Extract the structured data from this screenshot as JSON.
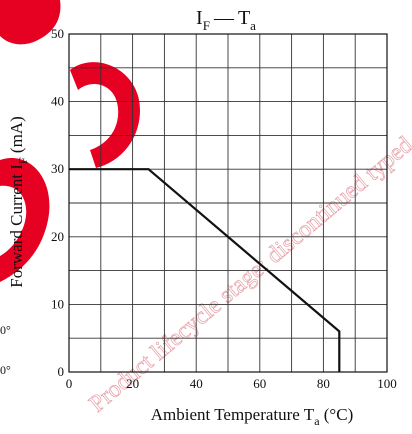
{
  "chart_data": {
    "type": "line",
    "title": "I_F — T_a",
    "title_parts": {
      "left_main": "I",
      "left_sub": "F",
      "dash": "—",
      "right_main": "T",
      "right_sub": "a"
    },
    "xlabel_parts": {
      "main": "Ambient Temperature  T",
      "sub": "a",
      "unit": " (°C)"
    },
    "ylabel_parts": {
      "main": "Forward Current  I",
      "sub": "F",
      "unit": "  (mA)"
    },
    "x_ticks": [
      0,
      20,
      40,
      60,
      80,
      100
    ],
    "y_ticks": [
      0,
      10,
      20,
      30,
      40,
      50
    ],
    "xlim": [
      0,
      100
    ],
    "ylim": [
      0,
      50
    ],
    "grid": true,
    "grid_step": {
      "x": 10,
      "y": 5
    },
    "series": [
      {
        "x": [
          0,
          25,
          85,
          85
        ],
        "y": [
          30,
          30,
          6,
          0
        ]
      }
    ],
    "color": "#111111"
  },
  "watermark": {
    "color": "#e60022",
    "text": "Product lifecycle stage: discontinued typed, discontinued type)",
    "edge_marks": [
      "0°",
      "0°"
    ]
  }
}
